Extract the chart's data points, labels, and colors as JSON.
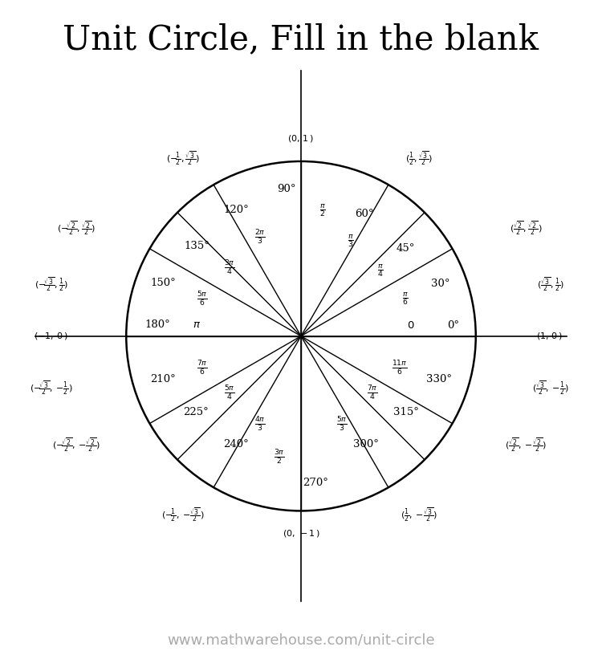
{
  "title": "Unit Circle, Fill in the blank",
  "footer": "www.mathwarehouse.com/unit-circle",
  "title_fontsize": 30,
  "footer_fontsize": 13,
  "footer_color": "#aaaaaa",
  "angles_deg": [
    0,
    30,
    45,
    60,
    90,
    120,
    135,
    150,
    180,
    210,
    225,
    240,
    270,
    300,
    315,
    330
  ],
  "radians": {
    "0": "0",
    "30": "\\frac{\\pi}{6}",
    "45": "\\frac{\\pi}{4}",
    "60": "\\frac{\\pi}{3}",
    "90": "\\frac{\\pi}{2}",
    "120": "\\frac{2\\pi}{3}",
    "135": "\\frac{3\\pi}{4}",
    "150": "\\frac{5\\pi}{6}",
    "180": "\\pi",
    "210": "\\frac{7\\pi}{6}",
    "225": "\\frac{5\\pi}{4}",
    "240": "\\frac{4\\pi}{3}",
    "270": "\\frac{3\\pi}{2}",
    "300": "\\frac{5\\pi}{3}",
    "315": "\\frac{7\\pi}{4}",
    "330": "\\frac{11\\pi}{6}"
  },
  "deg_label_r": 0.82,
  "rad_label_r": 0.62,
  "coord_label_r": 1.22,
  "circle_r": 1.0,
  "axis_lim": 1.55
}
